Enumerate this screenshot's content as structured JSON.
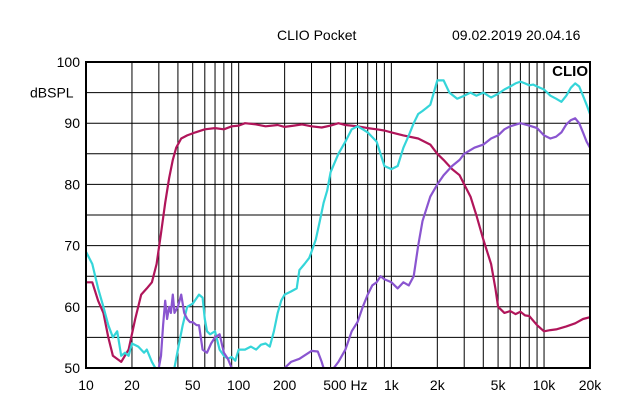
{
  "header": {
    "title": "CLIO Pocket",
    "timestamp": "09.02.2019 20.04.16"
  },
  "chart_data": {
    "type": "line",
    "title": "CLIO Pocket",
    "xlabel": "",
    "ylabel": "dBSPL",
    "logo": "CLIO",
    "x_scale": "log",
    "xlim": [
      10,
      20000
    ],
    "ylim": [
      50,
      100
    ],
    "grid": true,
    "x_ticks": [
      {
        "value": 10,
        "label": "10"
      },
      {
        "value": 20,
        "label": "20"
      },
      {
        "value": 50,
        "label": "50"
      },
      {
        "value": 100,
        "label": "100"
      },
      {
        "value": 200,
        "label": "200"
      },
      {
        "value": 500,
        "label": "500 Hz"
      },
      {
        "value": 1000,
        "label": "1k"
      },
      {
        "value": 2000,
        "label": "2k"
      },
      {
        "value": 5000,
        "label": "5k"
      },
      {
        "value": 10000,
        "label": "10k"
      },
      {
        "value": 20000,
        "label": "20k"
      }
    ],
    "y_ticks": [
      {
        "value": 100,
        "label": "100"
      },
      {
        "value": 90,
        "label": "90"
      },
      {
        "value": 80,
        "label": "80"
      },
      {
        "value": 70,
        "label": "70"
      },
      {
        "value": 60,
        "label": "60"
      },
      {
        "value": 50,
        "label": "50"
      }
    ],
    "series": [
      {
        "color": "#b0155a",
        "points": [
          [
            10,
            64
          ],
          [
            11,
            64
          ],
          [
            12,
            61
          ],
          [
            13,
            59
          ],
          [
            14,
            55
          ],
          [
            15,
            52
          ],
          [
            17,
            51
          ],
          [
            19,
            53
          ],
          [
            21,
            58
          ],
          [
            23,
            62
          ],
          [
            25,
            63
          ],
          [
            27,
            64
          ],
          [
            29,
            67
          ],
          [
            31,
            72
          ],
          [
            33,
            77
          ],
          [
            35,
            81
          ],
          [
            37,
            84
          ],
          [
            39,
            86
          ],
          [
            42,
            87.5
          ],
          [
            46,
            88
          ],
          [
            52,
            88.5
          ],
          [
            60,
            89
          ],
          [
            70,
            89.2
          ],
          [
            80,
            89
          ],
          [
            90,
            89.5
          ],
          [
            100,
            89.6
          ],
          [
            110,
            90
          ],
          [
            130,
            89.8
          ],
          [
            150,
            89.5
          ],
          [
            180,
            89.7
          ],
          [
            200,
            89.4
          ],
          [
            230,
            89.6
          ],
          [
            260,
            89.8
          ],
          [
            300,
            89.5
          ],
          [
            350,
            89.3
          ],
          [
            400,
            89.6
          ],
          [
            450,
            90
          ],
          [
            500,
            89.7
          ],
          [
            600,
            89.5
          ],
          [
            700,
            89.2
          ],
          [
            800,
            89
          ],
          [
            900,
            88.8
          ],
          [
            1000,
            88.5
          ],
          [
            1200,
            88
          ],
          [
            1500,
            87.5
          ],
          [
            1800,
            86.5
          ],
          [
            2000,
            85
          ],
          [
            2200,
            84
          ],
          [
            2500,
            82.5
          ],
          [
            2800,
            81.5
          ],
          [
            3000,
            80
          ],
          [
            3300,
            78
          ],
          [
            3600,
            75
          ],
          [
            4000,
            71
          ],
          [
            4500,
            67
          ],
          [
            4800,
            63
          ],
          [
            5000,
            60
          ],
          [
            5500,
            59
          ],
          [
            6000,
            59.3
          ],
          [
            6500,
            58.8
          ],
          [
            7000,
            59.2
          ],
          [
            7500,
            58.6
          ],
          [
            8000,
            58.5
          ],
          [
            9000,
            57
          ],
          [
            10000,
            56
          ],
          [
            11000,
            56.2
          ],
          [
            12000,
            56.3
          ],
          [
            14000,
            56.8
          ],
          [
            16000,
            57.3
          ],
          [
            18000,
            58
          ],
          [
            20000,
            58.3
          ]
        ]
      },
      {
        "color": "#35d5d9",
        "points": [
          [
            10,
            69
          ],
          [
            11,
            67
          ],
          [
            12,
            63
          ],
          [
            13,
            60
          ],
          [
            14,
            57
          ],
          [
            15,
            55
          ],
          [
            16,
            56
          ],
          [
            17,
            52
          ],
          [
            18,
            52.5
          ],
          [
            19,
            52
          ],
          [
            20,
            54
          ],
          [
            22,
            53.5
          ],
          [
            24,
            52.5
          ],
          [
            25,
            53
          ],
          [
            27,
            51
          ],
          [
            30,
            49
          ],
          [
            33,
            48
          ],
          [
            36,
            47
          ],
          [
            40,
            53
          ],
          [
            43,
            57
          ],
          [
            46,
            60
          ],
          [
            50,
            60.5
          ],
          [
            55,
            62
          ],
          [
            58,
            61.5
          ],
          [
            60,
            58
          ],
          [
            62,
            56
          ],
          [
            65,
            55.5
          ],
          [
            70,
            56
          ],
          [
            75,
            53
          ],
          [
            80,
            52
          ],
          [
            85,
            51.5
          ],
          [
            90,
            51.8
          ],
          [
            95,
            51.2
          ],
          [
            100,
            53
          ],
          [
            110,
            53
          ],
          [
            120,
            53.5
          ],
          [
            130,
            53
          ],
          [
            140,
            53.8
          ],
          [
            150,
            54
          ],
          [
            160,
            53.5
          ],
          [
            170,
            56
          ],
          [
            180,
            59
          ],
          [
            190,
            61
          ],
          [
            200,
            62
          ],
          [
            220,
            62.5
          ],
          [
            240,
            63
          ],
          [
            250,
            66
          ],
          [
            270,
            67
          ],
          [
            290,
            68
          ],
          [
            300,
            69
          ],
          [
            320,
            71
          ],
          [
            340,
            74
          ],
          [
            360,
            77
          ],
          [
            380,
            79
          ],
          [
            400,
            82
          ],
          [
            450,
            85
          ],
          [
            500,
            87
          ],
          [
            550,
            89
          ],
          [
            600,
            89.5
          ],
          [
            650,
            89
          ],
          [
            700,
            88.5
          ],
          [
            800,
            87
          ],
          [
            900,
            83
          ],
          [
            1000,
            82.5
          ],
          [
            1100,
            83
          ],
          [
            1200,
            86
          ],
          [
            1300,
            88
          ],
          [
            1400,
            90
          ],
          [
            1500,
            91.5
          ],
          [
            1600,
            92
          ],
          [
            1700,
            92.5
          ],
          [
            1800,
            93
          ],
          [
            2000,
            97
          ],
          [
            2200,
            97
          ],
          [
            2400,
            95
          ],
          [
            2700,
            94
          ],
          [
            3000,
            94.5
          ],
          [
            3300,
            95
          ],
          [
            3600,
            94.5
          ],
          [
            4000,
            95
          ],
          [
            4500,
            94.2
          ],
          [
            5000,
            94.8
          ],
          [
            5500,
            95.5
          ],
          [
            6000,
            96
          ],
          [
            6500,
            96.5
          ],
          [
            7000,
            96.8
          ],
          [
            7500,
            96.5
          ],
          [
            8000,
            96.2
          ],
          [
            8500,
            96.3
          ],
          [
            9000,
            96
          ],
          [
            10000,
            95.5
          ],
          [
            11000,
            94.5
          ],
          [
            12000,
            94
          ],
          [
            13000,
            93.5
          ],
          [
            14000,
            94.5
          ],
          [
            15000,
            95.8
          ],
          [
            16000,
            96.5
          ],
          [
            17000,
            96
          ],
          [
            18000,
            94.5
          ],
          [
            19000,
            93
          ],
          [
            20000,
            91.5
          ]
        ]
      },
      {
        "color": "#8a55d0",
        "points": [
          [
            26,
            47
          ],
          [
            28,
            49
          ],
          [
            30,
            50
          ],
          [
            31,
            52
          ],
          [
            32,
            57
          ],
          [
            33,
            61
          ],
          [
            34,
            58
          ],
          [
            35,
            60
          ],
          [
            36,
            59
          ],
          [
            37,
            62
          ],
          [
            38,
            59
          ],
          [
            40,
            60
          ],
          [
            42,
            62
          ],
          [
            44,
            59
          ],
          [
            46,
            58
          ],
          [
            48,
            57.5
          ],
          [
            50,
            57.5
          ],
          [
            53,
            57
          ],
          [
            55,
            57
          ],
          [
            58,
            53
          ],
          [
            62,
            52.5
          ],
          [
            66,
            54
          ],
          [
            70,
            55
          ],
          [
            75,
            55.5
          ],
          [
            80,
            52.5
          ],
          [
            85,
            51.5
          ],
          [
            90,
            50
          ],
          [
            95,
            48
          ],
          [
            100,
            46
          ],
          [
            110,
            46
          ],
          [
            130,
            45
          ],
          [
            150,
            45
          ],
          [
            180,
            48
          ],
          [
            200,
            50
          ],
          [
            220,
            51
          ],
          [
            250,
            51.5
          ],
          [
            300,
            52.8
          ],
          [
            330,
            52.7
          ],
          [
            350,
            51
          ],
          [
            380,
            48
          ],
          [
            400,
            49
          ],
          [
            420,
            50
          ],
          [
            450,
            51
          ],
          [
            500,
            53
          ],
          [
            550,
            56
          ],
          [
            600,
            57.5
          ],
          [
            650,
            60
          ],
          [
            700,
            62
          ],
          [
            750,
            63.5
          ],
          [
            800,
            64
          ],
          [
            850,
            65
          ],
          [
            900,
            64.5
          ],
          [
            1000,
            64
          ],
          [
            1100,
            63
          ],
          [
            1200,
            64
          ],
          [
            1300,
            63.5
          ],
          [
            1400,
            65
          ],
          [
            1500,
            70
          ],
          [
            1600,
            74
          ],
          [
            1800,
            78
          ],
          [
            2000,
            80
          ],
          [
            2200,
            81.5
          ],
          [
            2500,
            83
          ],
          [
            2800,
            84
          ],
          [
            3000,
            85
          ],
          [
            3500,
            86
          ],
          [
            4000,
            86.5
          ],
          [
            4500,
            87.5
          ],
          [
            5000,
            88
          ],
          [
            5500,
            89
          ],
          [
            6000,
            89.5
          ],
          [
            7000,
            90
          ],
          [
            8000,
            89.6
          ],
          [
            9000,
            89.2
          ],
          [
            10000,
            88
          ],
          [
            11000,
            87.5
          ],
          [
            12000,
            87.8
          ],
          [
            13000,
            88.5
          ],
          [
            14000,
            89.8
          ],
          [
            15000,
            90.5
          ],
          [
            16000,
            90.8
          ],
          [
            17000,
            90
          ],
          [
            18000,
            88.5
          ],
          [
            19000,
            87
          ],
          [
            20000,
            86
          ]
        ]
      }
    ]
  }
}
